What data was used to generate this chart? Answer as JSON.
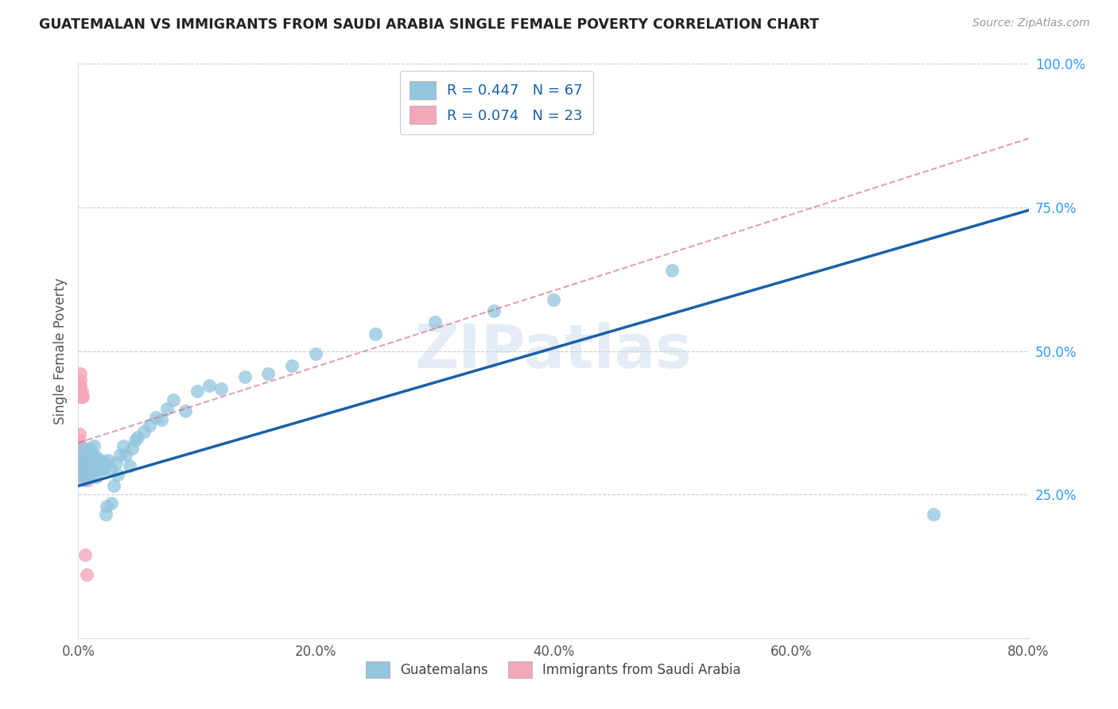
{
  "title": "GUATEMALAN VS IMMIGRANTS FROM SAUDI ARABIA SINGLE FEMALE POVERTY CORRELATION CHART",
  "source": "Source: ZipAtlas.com",
  "ylabel": "Single Female Poverty",
  "xmin": 0.0,
  "xmax": 0.8,
  "ymin": 0.0,
  "ymax": 1.0,
  "xtick_labels": [
    "0.0%",
    "20.0%",
    "40.0%",
    "60.0%",
    "80.0%"
  ],
  "xtick_values": [
    0.0,
    0.2,
    0.4,
    0.6,
    0.8
  ],
  "ytick_labels": [
    "25.0%",
    "50.0%",
    "75.0%",
    "100.0%"
  ],
  "ytick_values": [
    0.25,
    0.5,
    0.75,
    1.0
  ],
  "legend_labels": [
    "Guatemalans",
    "Immigrants from Saudi Arabia"
  ],
  "R_guatemalan": 0.447,
  "N_guatemalan": 67,
  "R_saudi": 0.074,
  "N_saudi": 23,
  "blue_color": "#92c5de",
  "blue_line_color": "#1a5fa8",
  "pink_color": "#f4a7b9",
  "pink_line_color": "#d4607a",
  "watermark": "ZIPatlas",
  "blue_line_x0": 0.0,
  "blue_line_y0": 0.265,
  "blue_line_x1": 0.8,
  "blue_line_y1": 0.745,
  "pink_line_x0": 0.0,
  "pink_line_y0": 0.34,
  "pink_line_x1": 0.8,
  "pink_line_y1": 0.87,
  "guatemalan_x": [
    0.003,
    0.003,
    0.004,
    0.004,
    0.005,
    0.005,
    0.006,
    0.006,
    0.007,
    0.007,
    0.008,
    0.008,
    0.009,
    0.009,
    0.01,
    0.01,
    0.011,
    0.011,
    0.012,
    0.012,
    0.013,
    0.013,
    0.014,
    0.015,
    0.015,
    0.016,
    0.017,
    0.018,
    0.019,
    0.02,
    0.021,
    0.022,
    0.023,
    0.024,
    0.025,
    0.027,
    0.028,
    0.03,
    0.032,
    0.033,
    0.035,
    0.038,
    0.04,
    0.043,
    0.045,
    0.048,
    0.05,
    0.055,
    0.06,
    0.065,
    0.07,
    0.075,
    0.08,
    0.09,
    0.1,
    0.11,
    0.12,
    0.14,
    0.16,
    0.18,
    0.2,
    0.25,
    0.3,
    0.35,
    0.4,
    0.5,
    0.72
  ],
  "guatemalan_y": [
    0.295,
    0.31,
    0.285,
    0.33,
    0.275,
    0.305,
    0.3,
    0.32,
    0.31,
    0.29,
    0.315,
    0.295,
    0.305,
    0.28,
    0.31,
    0.33,
    0.295,
    0.32,
    0.3,
    0.315,
    0.29,
    0.335,
    0.305,
    0.28,
    0.315,
    0.295,
    0.305,
    0.295,
    0.31,
    0.295,
    0.305,
    0.295,
    0.215,
    0.23,
    0.31,
    0.295,
    0.235,
    0.265,
    0.305,
    0.285,
    0.32,
    0.335,
    0.32,
    0.3,
    0.33,
    0.345,
    0.35,
    0.36,
    0.37,
    0.385,
    0.38,
    0.4,
    0.415,
    0.395,
    0.43,
    0.44,
    0.435,
    0.455,
    0.46,
    0.475,
    0.495,
    0.53,
    0.55,
    0.57,
    0.59,
    0.64,
    0.215
  ],
  "saudi_x": [
    0.001,
    0.001,
    0.001,
    0.001,
    0.001,
    0.001,
    0.001,
    0.001,
    0.001,
    0.001,
    0.002,
    0.002,
    0.002,
    0.002,
    0.003,
    0.003,
    0.003,
    0.004,
    0.004,
    0.005,
    0.006,
    0.007,
    0.008
  ],
  "saudi_y": [
    0.285,
    0.3,
    0.31,
    0.32,
    0.335,
    0.345,
    0.355,
    0.42,
    0.43,
    0.44,
    0.43,
    0.44,
    0.45,
    0.46,
    0.42,
    0.43,
    0.29,
    0.28,
    0.42,
    0.29,
    0.145,
    0.11,
    0.275
  ]
}
